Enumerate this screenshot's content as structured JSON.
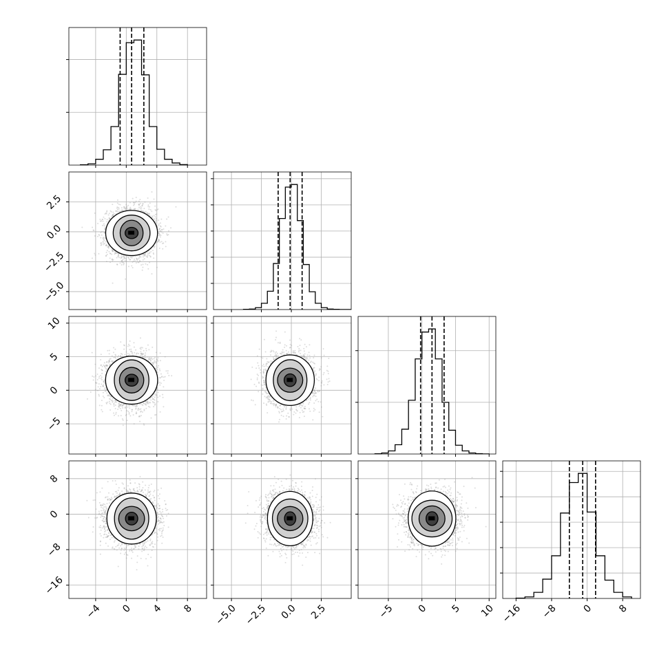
{
  "chart_data": {
    "type": "corner",
    "n_params": 4,
    "grid": true,
    "colors": {
      "line": "#000000",
      "grid": "#b0b0b0",
      "scatter": "#9a9a9a",
      "frame": "#000000",
      "background": "#ffffff"
    },
    "params": [
      {
        "mean": 0.7,
        "sd": 1.6,
        "q16": -0.8,
        "q50": 0.7,
        "q84": 2.3,
        "range": [
          -7.5,
          10.5
        ],
        "ticks": [
          -4,
          0,
          4,
          8
        ],
        "tick_labels": [
          "−4",
          "0",
          "4",
          "8"
        ],
        "hist_edges": [
          -6.0,
          -5.0,
          -4.0,
          -3.0,
          -2.0,
          -1.0,
          0.0,
          1.0,
          2.0,
          3.0,
          4.0,
          5.0,
          6.0,
          7.0,
          8.0
        ],
        "hist_counts": [
          3,
          12,
          55,
          145,
          365,
          860,
          1160,
          1185,
          855,
          365,
          150,
          55,
          20,
          5
        ]
      },
      {
        "mean": -0.1,
        "sd": 1.0,
        "q16": -1.1,
        "q50": -0.1,
        "q84": 0.9,
        "range": [
          -6.5,
          5.0
        ],
        "ticks": [
          -5.0,
          -2.5,
          0.0,
          2.5
        ],
        "tick_labels": [
          "−5.0",
          "−2.5",
          "0.0",
          "2.5"
        ],
        "hist_edges": [
          -4.0,
          -3.5,
          -3.0,
          -2.5,
          -2.0,
          -1.5,
          -1.0,
          -0.5,
          0.0,
          0.5,
          1.0,
          1.5,
          2.0,
          2.5,
          3.0,
          3.5,
          4.0,
          4.5,
          5.0
        ],
        "hist_counts": [
          2,
          5,
          18,
          60,
          175,
          440,
          870,
          1170,
          1195,
          850,
          430,
          170,
          60,
          18,
          5,
          2,
          1,
          1
        ]
      },
      {
        "mean": 1.5,
        "sd": 1.9,
        "q16": -0.2,
        "q50": 1.5,
        "q84": 3.3,
        "range": [
          -9.5,
          11.0
        ],
        "ticks": [
          -5,
          0,
          5,
          10
        ],
        "tick_labels": [
          "−5",
          "0",
          "5",
          "10"
        ],
        "hist_edges": [
          -7.0,
          -6.0,
          -5.0,
          -4.0,
          -3.0,
          -2.0,
          -1.0,
          0.0,
          1.0,
          2.0,
          3.0,
          4.0,
          5.0,
          6.0,
          7.0,
          8.0,
          9.0,
          10.0
        ],
        "hist_counts": [
          2,
          10,
          30,
          90,
          240,
          520,
          920,
          1180,
          1210,
          920,
          500,
          230,
          85,
          30,
          10,
          3,
          1
        ]
      },
      {
        "mean": -1.0,
        "sd": 2.9,
        "q16": -4.0,
        "q50": -1.0,
        "q84": 1.9,
        "range": [
          -19.0,
          12.0
        ],
        "ticks": [
          -16,
          -8,
          0,
          8
        ],
        "tick_labels": [
          "−16",
          "−8",
          "0",
          "8"
        ],
        "hist_edges": [
          -16.0,
          -14.0,
          -12.0,
          -10.0,
          -8.0,
          -6.0,
          -4.0,
          -2.0,
          0.0,
          2.0,
          4.0,
          6.0,
          8.0,
          10.0
        ],
        "hist_counts": [
          3,
          15,
          60,
          190,
          420,
          840,
          1140,
          1230,
          850,
          420,
          180,
          60,
          15
        ]
      }
    ],
    "hist_yticks": [
      [
        500,
        1000
      ],
      [
        250,
        500,
        750,
        1000,
        1250
      ],
      [
        500,
        1000
      ],
      [
        250,
        500,
        750,
        1000,
        1250
      ]
    ],
    "panels_2d": [
      {
        "row": 1,
        "col": 0,
        "rho": 0.0
      },
      {
        "row": 2,
        "col": 0,
        "rho": 0.0
      },
      {
        "row": 2,
        "col": 1,
        "rho": 0.0
      },
      {
        "row": 3,
        "col": 0,
        "rho": 0.0
      },
      {
        "row": 3,
        "col": 1,
        "rho": 0.0
      },
      {
        "row": 3,
        "col": 2,
        "rho": 0.0
      }
    ],
    "contour_levels_sigma": [
      0.5,
      1.0,
      1.5,
      2.0
    ]
  }
}
